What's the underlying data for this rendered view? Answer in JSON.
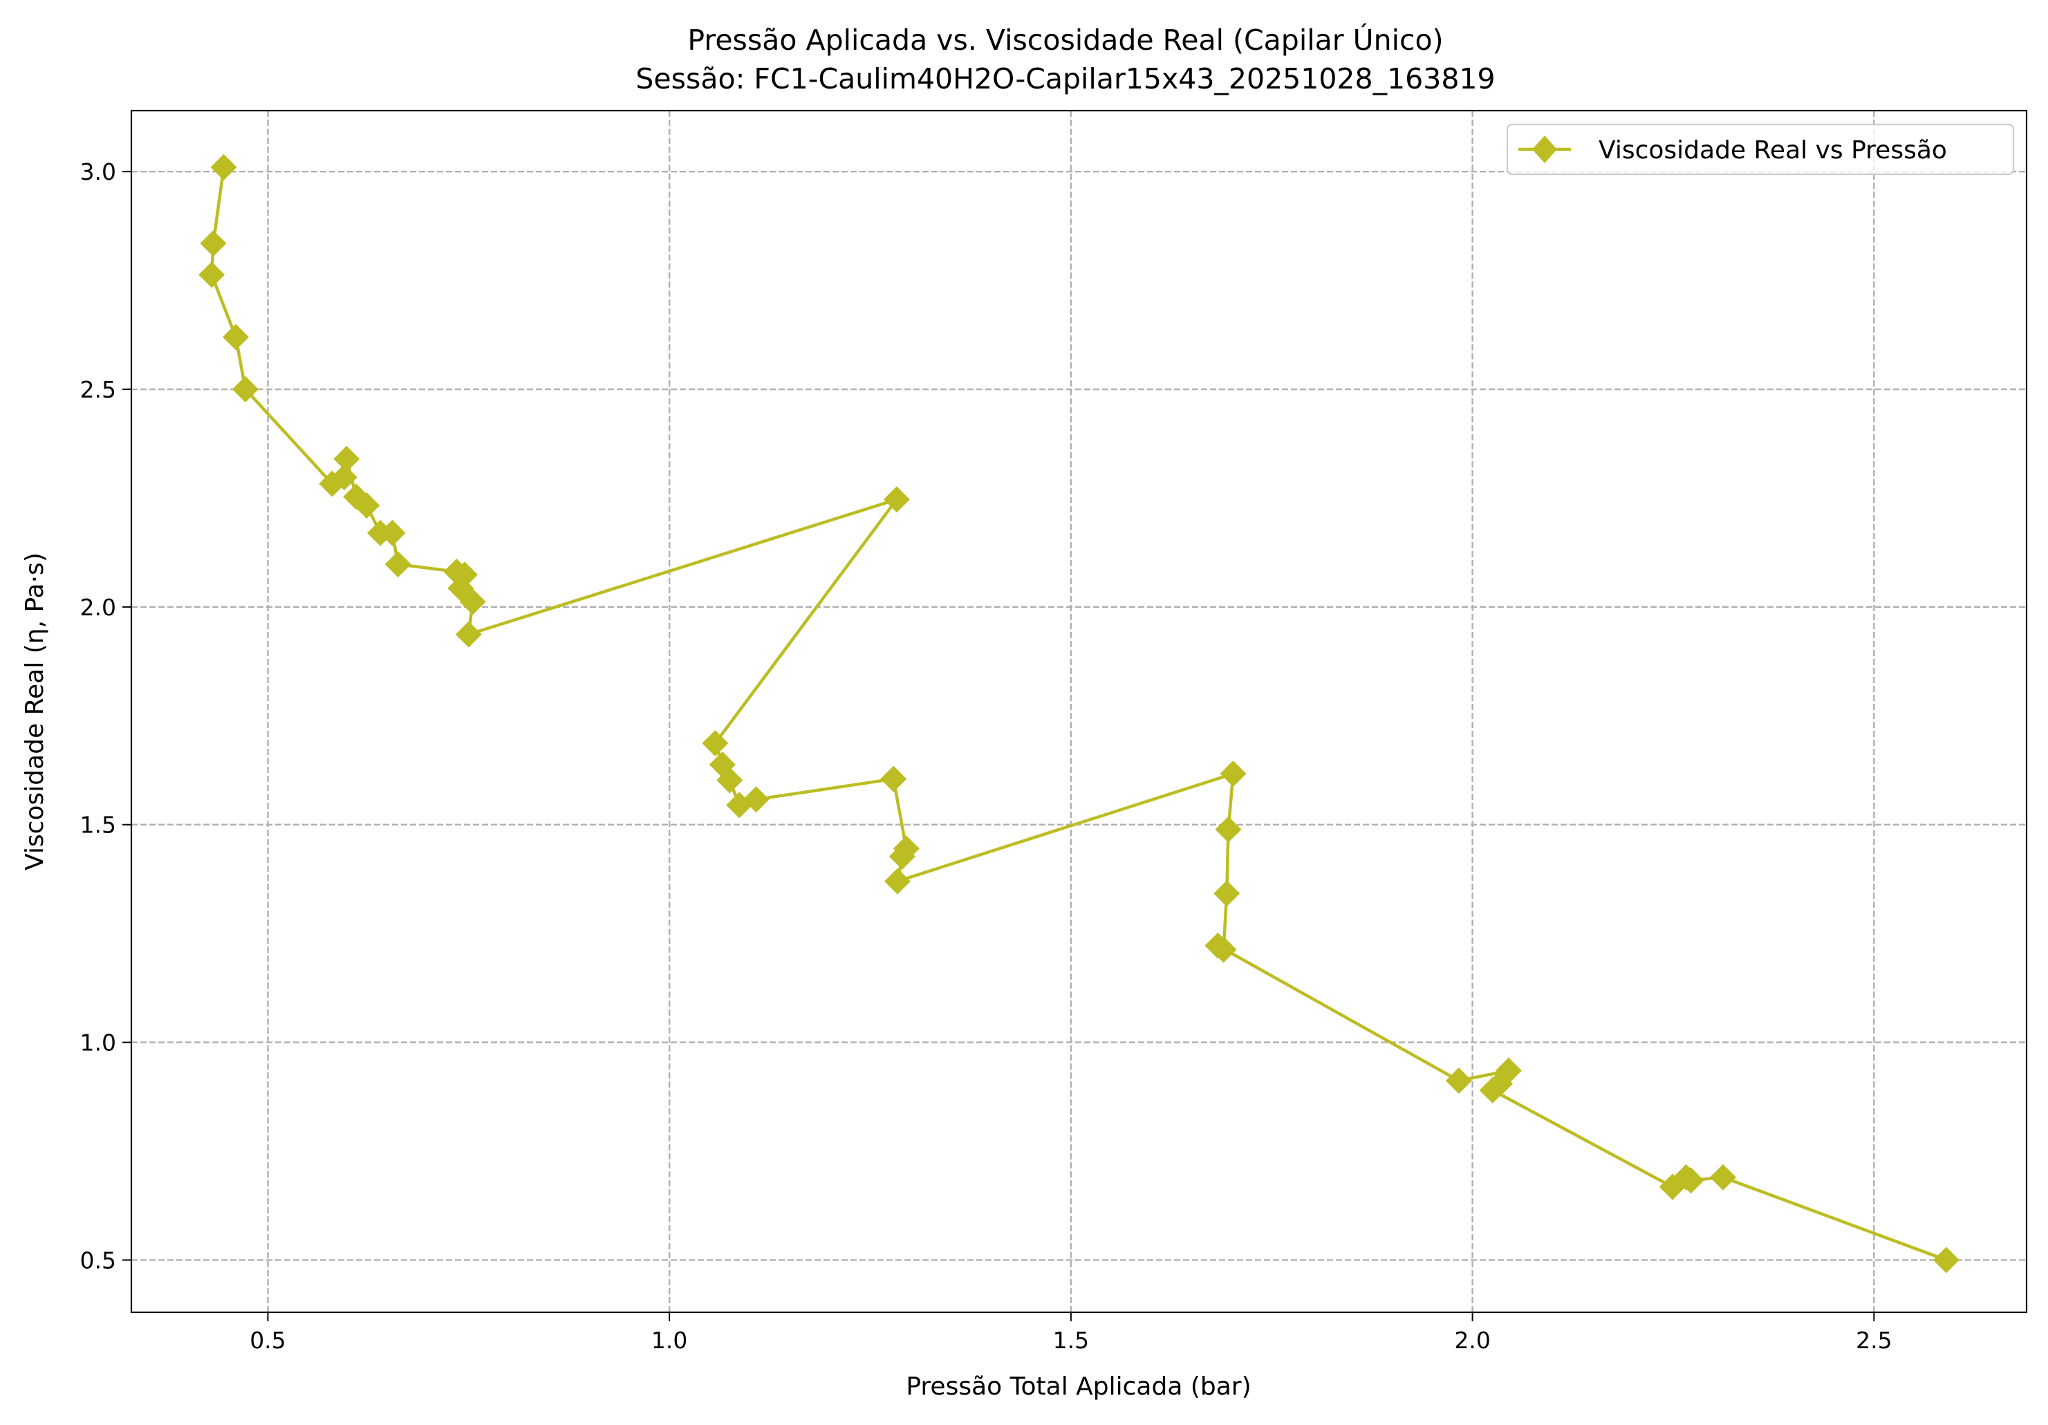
{
  "chart_data": {
    "type": "line",
    "title": "Pressão Aplicada vs. Viscosidade Real (Capilar Único)",
    "subtitle": "Sessão: FC1-Caulim40H2O-Capilar15x43_20251028_163819",
    "xlabel": "Pressão Total Aplicada (bar)",
    "ylabel": "Viscosidade Real (η, Pa·s)",
    "xlim": [
      0.33,
      2.69
    ],
    "ylim": [
      0.38,
      3.14
    ],
    "xticks": [
      0.5,
      1.0,
      1.5,
      2.0,
      2.5
    ],
    "yticks": [
      0.5,
      1.0,
      1.5,
      2.0,
      2.5,
      3.0
    ],
    "xtick_labels": [
      "0.5",
      "1.0",
      "1.5",
      "2.0",
      "2.5"
    ],
    "ytick_labels": [
      "0.5",
      "1.0",
      "1.5",
      "2.0",
      "2.5",
      "3.0"
    ],
    "grid": true,
    "legend_position": "top-right",
    "marker": "diamond",
    "series": [
      {
        "name": "Viscosidade Real vs Pressão",
        "color": "#bcbd22",
        "x": [
          0.445,
          0.432,
          0.43,
          0.46,
          0.472,
          0.58,
          0.595,
          0.598,
          0.61,
          0.623,
          0.64,
          0.655,
          0.662,
          0.735,
          0.745,
          0.74,
          0.755,
          0.75,
          1.283,
          1.057,
          1.066,
          1.075,
          1.087,
          1.108,
          1.279,
          1.295,
          1.29,
          1.284,
          1.702,
          1.696,
          1.694,
          1.69,
          1.683,
          1.983,
          2.045,
          2.034,
          2.025,
          2.249,
          2.266,
          2.272,
          2.312,
          2.59
        ],
        "y": [
          3.01,
          2.835,
          2.763,
          2.62,
          2.5,
          2.283,
          2.298,
          2.34,
          2.253,
          2.233,
          2.17,
          2.17,
          2.098,
          2.081,
          2.074,
          2.043,
          2.012,
          1.937,
          2.247,
          1.687,
          1.638,
          1.602,
          1.545,
          1.558,
          1.605,
          1.445,
          1.427,
          1.37,
          1.617,
          1.489,
          1.342,
          1.213,
          1.222,
          0.912,
          0.935,
          0.905,
          0.89,
          0.668,
          0.69,
          0.683,
          0.69,
          0.5
        ]
      }
    ]
  }
}
